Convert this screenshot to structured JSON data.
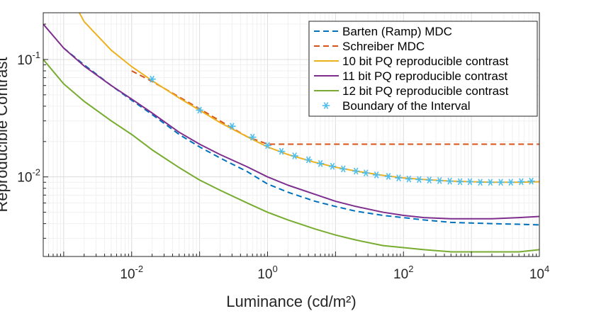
{
  "chart_data": {
    "type": "line",
    "xlabel": "Luminance (cd/m²)",
    "ylabel": "Reproducible Contrast",
    "x_scale": "log",
    "y_scale": "log",
    "xlim": [
      0.0005,
      10000
    ],
    "ylim": [
      0.0021,
      0.25
    ],
    "grid": true,
    "legend_position": "top-right",
    "x_ticks": [
      {
        "value": 0.01,
        "base": "10",
        "exp": "-2"
      },
      {
        "value": 1,
        "base": "10",
        "exp": "0"
      },
      {
        "value": 100,
        "base": "10",
        "exp": "2"
      },
      {
        "value": 10000,
        "base": "10",
        "exp": "4"
      }
    ],
    "y_ticks": [
      {
        "value": 0.1,
        "base": "10",
        "exp": "-1"
      },
      {
        "value": 0.01,
        "base": "10",
        "exp": "-2"
      }
    ],
    "series": [
      {
        "name": "Barten (Ramp) MDC",
        "color": "#0072bd",
        "style": "dashed",
        "x": [
          0.001,
          0.002,
          0.005,
          0.01,
          0.02,
          0.05,
          0.1,
          0.2,
          0.5,
          1,
          2,
          5,
          10,
          20,
          50,
          100,
          200,
          500,
          1000,
          2000,
          5000,
          10000
        ],
        "y": [
          0.125,
          0.09,
          0.06,
          0.045,
          0.034,
          0.023,
          0.018,
          0.0145,
          0.0111,
          0.0087,
          0.0074,
          0.0062,
          0.0056,
          0.0051,
          0.0047,
          0.0045,
          0.0043,
          0.0041,
          0.00405,
          0.004,
          0.00395,
          0.0039
        ]
      },
      {
        "name": "Schreiber MDC",
        "color": "#d95319",
        "style": "dashed",
        "x": [
          0.01,
          0.02,
          0.05,
          0.1,
          0.2,
          0.5,
          1,
          2,
          10,
          100,
          1000,
          10000
        ],
        "y": [
          0.08,
          0.065,
          0.048,
          0.038,
          0.03,
          0.022,
          0.019,
          0.019,
          0.019,
          0.019,
          0.019,
          0.019
        ]
      },
      {
        "name": "10 bit PQ reproducible contrast",
        "color": "#edb120",
        "style": "solid",
        "x": [
          0.0017,
          0.002,
          0.005,
          0.01,
          0.02,
          0.05,
          0.1,
          0.2,
          0.5,
          1,
          2,
          5,
          10,
          20,
          50,
          100,
          200,
          500,
          1000,
          2000,
          5000,
          10000
        ],
        "y": [
          0.25,
          0.21,
          0.12,
          0.087,
          0.066,
          0.047,
          0.037,
          0.029,
          0.022,
          0.018,
          0.0155,
          0.0133,
          0.0121,
          0.0112,
          0.0103,
          0.0098,
          0.0095,
          0.0092,
          0.0091,
          0.009,
          0.009,
          0.0091
        ]
      },
      {
        "name": "11 bit PQ reproducible contrast",
        "color": "#7e2f8e",
        "style": "solid",
        "x": [
          0.0005,
          0.001,
          0.002,
          0.005,
          0.01,
          0.02,
          0.05,
          0.1,
          0.2,
          0.5,
          1,
          2,
          5,
          10,
          20,
          50,
          100,
          200,
          500,
          1000,
          2000,
          5000,
          10000
        ],
        "y": [
          0.2,
          0.125,
          0.088,
          0.06,
          0.046,
          0.035,
          0.024,
          0.019,
          0.0155,
          0.0122,
          0.01,
          0.0085,
          0.0071,
          0.0062,
          0.0056,
          0.005,
          0.0047,
          0.0045,
          0.0044,
          0.0044,
          0.0044,
          0.0045,
          0.0046
        ]
      },
      {
        "name": "12 bit PQ reproducible contrast",
        "color": "#77ac30",
        "style": "solid",
        "x": [
          0.0005,
          0.001,
          0.002,
          0.005,
          0.01,
          0.02,
          0.05,
          0.1,
          0.2,
          0.5,
          1,
          2,
          5,
          10,
          20,
          50,
          100,
          200,
          500,
          1000,
          2000,
          5000,
          10000
        ],
        "y": [
          0.1,
          0.062,
          0.044,
          0.03,
          0.023,
          0.017,
          0.012,
          0.0094,
          0.0077,
          0.006,
          0.005,
          0.0043,
          0.0036,
          0.0032,
          0.0029,
          0.0026,
          0.0025,
          0.0024,
          0.0023,
          0.0023,
          0.0023,
          0.0023,
          0.0024
        ]
      },
      {
        "name": "Boundary of the Interval",
        "color": "#4dbeee",
        "style": "markers",
        "marker": "asterisk",
        "x": [
          0.02,
          0.1,
          0.3,
          0.6,
          1.0,
          1.6,
          2.5,
          4,
          6,
          9,
          13,
          20,
          28,
          40,
          60,
          85,
          120,
          170,
          240,
          340,
          480,
          680,
          950,
          1350,
          1900,
          2700,
          3800,
          5400,
          7600
        ],
        "y": [
          0.068,
          0.037,
          0.027,
          0.0218,
          0.0185,
          0.0165,
          0.0151,
          0.014,
          0.013,
          0.0123,
          0.0117,
          0.0112,
          0.0108,
          0.0104,
          0.0101,
          0.0098,
          0.0096,
          0.0095,
          0.0094,
          0.0093,
          0.0092,
          0.0091,
          0.0091,
          0.009,
          0.009,
          0.009,
          0.009,
          0.0091,
          0.0092
        ]
      }
    ]
  }
}
